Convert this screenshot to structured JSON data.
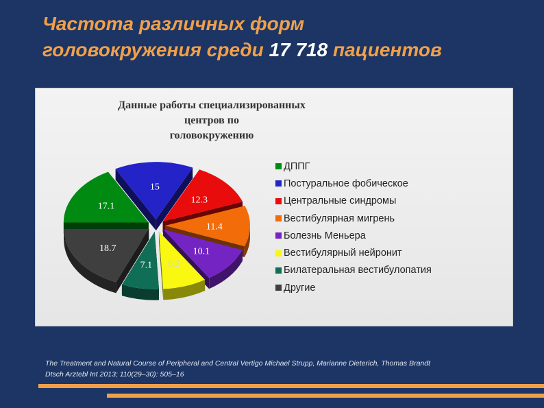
{
  "slide": {
    "title_line1": "Частота различных форм",
    "title_line2_prefix": "головокружения среди ",
    "title_line2_number": "17 718",
    "title_line2_suffix": " пациентов",
    "citation_line1": "The Treatment and Natural Course of Peripheral and Central Vertigo Michael Strupp, Marianne Dieterich, Thomas Brandt",
    "citation_line2": "Dtsch Arztebl Int 2013; 110(29–30): 505–16"
  },
  "chart_data": {
    "type": "pie",
    "title_line1": "Данные работы специализированных центров по",
    "title_line2": "головокружению",
    "legend_position": "right",
    "exploded": true,
    "three_d": true,
    "slices": [
      {
        "label": "ДППГ",
        "value": 17.1,
        "value_label": "17.1",
        "color": "#008a12"
      },
      {
        "label": "Постуральное фобическое",
        "value": 15,
        "value_label": "15",
        "color": "#2323c8"
      },
      {
        "label": "Центральные синдромы",
        "value": 12.3,
        "value_label": "12.3",
        "color": "#e80c0c"
      },
      {
        "label": "Вестибулярная мигрень",
        "value": 11.4,
        "value_label": "11.4",
        "color": "#f26c0a"
      },
      {
        "label": "Болезнь Меньера",
        "value": 10.1,
        "value_label": "10.1",
        "color": "#7424c2"
      },
      {
        "label": "Вестибулярный нейронит",
        "value": 8.3,
        "value_label": "8.3",
        "color": "#f8f810"
      },
      {
        "label": "Билатеральная вестибулопатия",
        "value": 7.1,
        "value_label": "7.1",
        "color": "#106e56"
      },
      {
        "label": "Другие",
        "value": 18.7,
        "value_label": "18.7",
        "color": "#3f3f3f"
      }
    ],
    "draw_order": [
      "Центральные синдромы",
      "Вестибулярная мигрень",
      "Болезнь Меньера",
      "Постуральное фобическое",
      "ДППГ",
      "Вестибулярный нейронит",
      "Билатеральная вестибулопатия",
      "Другие"
    ]
  }
}
